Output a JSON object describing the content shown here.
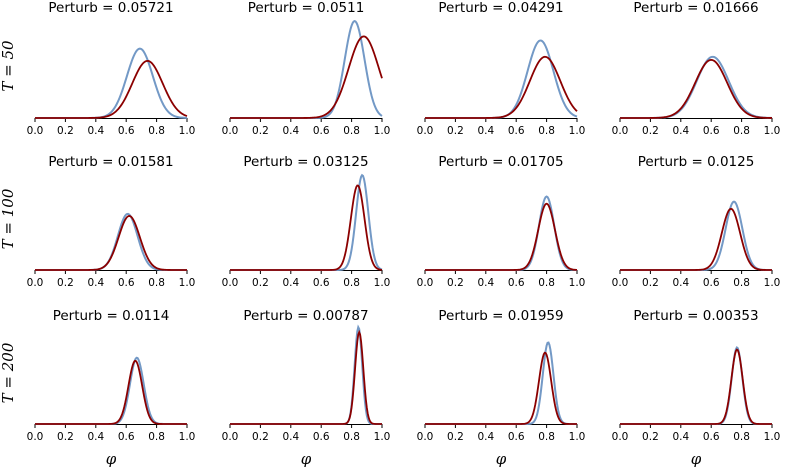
{
  "chart_data": {
    "type": "line",
    "grid": false,
    "legend": "none",
    "xlim": [
      0.0,
      1.0
    ],
    "xticks": [
      "0.0",
      "0.2",
      "0.4",
      "0.6",
      "0.8",
      "1.0"
    ],
    "xlabel": "φ",
    "row_labels": [
      "T = 50",
      "T = 100",
      "T = 200"
    ],
    "colors": {
      "series_a": "#7399c6",
      "series_b": "#8b0000"
    },
    "panels": [
      {
        "title": "Perturb = 0.05721",
        "series": [
          {
            "mean": 0.69,
            "sd": 0.085,
            "peak": 0.68
          },
          {
            "mean": 0.74,
            "sd": 0.1,
            "peak": 0.56
          }
        ]
      },
      {
        "title": "Perturb = 0.0511",
        "series": [
          {
            "mean": 0.82,
            "sd": 0.065,
            "peak": 0.95
          },
          {
            "mean": 0.88,
            "sd": 0.1,
            "peak": 0.8
          }
        ]
      },
      {
        "title": "Perturb = 0.04291",
        "series": [
          {
            "mean": 0.76,
            "sd": 0.085,
            "peak": 0.76
          },
          {
            "mean": 0.79,
            "sd": 0.1,
            "peak": 0.6
          }
        ]
      },
      {
        "title": "Perturb = 0.01666",
        "series": [
          {
            "mean": 0.61,
            "sd": 0.105,
            "peak": 0.6
          },
          {
            "mean": 0.6,
            "sd": 0.105,
            "peak": 0.57
          }
        ]
      },
      {
        "title": "Perturb = 0.01581",
        "series": [
          {
            "mean": 0.61,
            "sd": 0.065,
            "peak": 0.55
          },
          {
            "mean": 0.62,
            "sd": 0.07,
            "peak": 0.53
          }
        ]
      },
      {
        "title": "Perturb = 0.03125",
        "series": [
          {
            "mean": 0.87,
            "sd": 0.04,
            "peak": 0.93
          },
          {
            "mean": 0.84,
            "sd": 0.045,
            "peak": 0.83
          }
        ]
      },
      {
        "title": "Perturb = 0.01705",
        "series": [
          {
            "mean": 0.8,
            "sd": 0.05,
            "peak": 0.72
          },
          {
            "mean": 0.8,
            "sd": 0.055,
            "peak": 0.65
          }
        ]
      },
      {
        "title": "Perturb = 0.0125",
        "series": [
          {
            "mean": 0.75,
            "sd": 0.055,
            "peak": 0.67
          },
          {
            "mean": 0.73,
            "sd": 0.06,
            "peak": 0.6
          }
        ]
      },
      {
        "title": "Perturb = 0.0114",
        "series": [
          {
            "mean": 0.67,
            "sd": 0.045,
            "peak": 0.65
          },
          {
            "mean": 0.66,
            "sd": 0.045,
            "peak": 0.62
          }
        ]
      },
      {
        "title": "Perturb = 0.00787",
        "series": [
          {
            "mean": 0.845,
            "sd": 0.025,
            "peak": 0.95
          },
          {
            "mean": 0.85,
            "sd": 0.027,
            "peak": 0.9
          }
        ]
      },
      {
        "title": "Perturb = 0.01959",
        "series": [
          {
            "mean": 0.81,
            "sd": 0.035,
            "peak": 0.8
          },
          {
            "mean": 0.79,
            "sd": 0.04,
            "peak": 0.7
          }
        ]
      },
      {
        "title": "Perturb = 0.00353",
        "series": [
          {
            "mean": 0.77,
            "sd": 0.035,
            "peak": 0.75
          },
          {
            "mean": 0.77,
            "sd": 0.037,
            "peak": 0.73
          }
        ]
      }
    ]
  }
}
